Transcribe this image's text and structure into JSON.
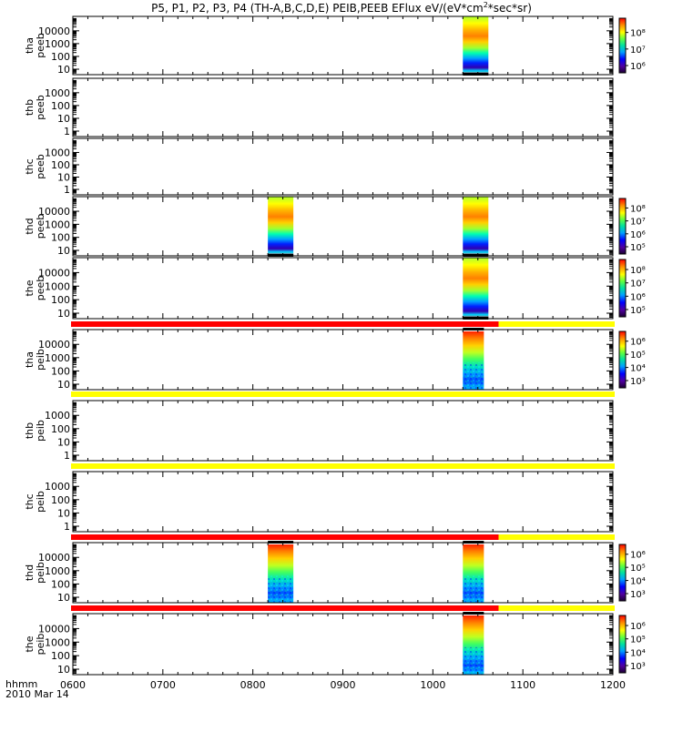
{
  "title_main": "P5, P1, P2, P3, P4 (TH-A,B,C,D,E) PEIB,PEEB EFlux eV/(eV*cm",
  "title_sup": "2",
  "title_tail": "*sec*sr)",
  "footer": {
    "line1": "hhmm",
    "line2": "2010 Mar 14"
  },
  "colors": {
    "fill_red": "#ff0000",
    "fill_yellow": "#ffff00",
    "flag_black": "#000000"
  },
  "chart_data": {
    "type": "heatmap",
    "x_axis": {
      "range": [
        "0600",
        "1200"
      ],
      "ticks": [
        "0600",
        "0700",
        "0800",
        "0900",
        "1000",
        "1100",
        "1200"
      ]
    },
    "panels": [
      {
        "id": "tha-peeb",
        "probe": "tha",
        "instrument": "peeb",
        "yticks": [
          "10",
          "100",
          "1000",
          "10000"
        ],
        "cb_ticks": [
          "10⁶",
          "10⁷",
          "10⁸"
        ],
        "blocks": [
          [
            "1020",
            "1037"
          ]
        ]
      },
      {
        "id": "thb-peeb",
        "probe": "thb",
        "instrument": "peeb",
        "yticks": [
          "1",
          "10",
          "100",
          "1000"
        ],
        "cb_ticks": [],
        "blocks": []
      },
      {
        "id": "thc-peeb",
        "probe": "thc",
        "instrument": "peeb",
        "yticks": [
          "1",
          "10",
          "100",
          "1000"
        ],
        "cb_ticks": [],
        "blocks": []
      },
      {
        "id": "thd-peeb",
        "probe": "thd",
        "instrument": "peeb",
        "yticks": [
          "10",
          "100",
          "1000",
          "10000"
        ],
        "cb_ticks": [
          "10⁵",
          "10⁶",
          "10⁷",
          "10⁸"
        ],
        "blocks": [
          [
            "0810",
            "0827"
          ],
          [
            "1020",
            "1037"
          ]
        ]
      },
      {
        "id": "the-peeb",
        "probe": "the",
        "instrument": "peeb",
        "yticks": [
          "10",
          "100",
          "1000",
          "10000"
        ],
        "cb_ticks": [
          "10⁵",
          "10⁶",
          "10⁷",
          "10⁸"
        ],
        "blocks": [
          [
            "1020",
            "1037"
          ]
        ]
      },
      {
        "id": "tha-peib",
        "probe": "tha",
        "instrument": "peib",
        "yticks": [
          "10",
          "100",
          "1000",
          "10000"
        ],
        "cb_ticks": [
          "10³",
          "10⁴",
          "10⁵",
          "10⁶"
        ],
        "blocks": [
          [
            "1020",
            "1034"
          ]
        ]
      },
      {
        "id": "thb-peib",
        "probe": "thb",
        "instrument": "peib",
        "yticks": [
          "1",
          "10",
          "100",
          "1000"
        ],
        "cb_ticks": [],
        "blocks": []
      },
      {
        "id": "thc-peib",
        "probe": "thc",
        "instrument": "peib",
        "yticks": [
          "1",
          "10",
          "100",
          "1000"
        ],
        "cb_ticks": [],
        "blocks": []
      },
      {
        "id": "thd-peib",
        "probe": "thd",
        "instrument": "peib",
        "yticks": [
          "10",
          "100",
          "1000",
          "10000"
        ],
        "cb_ticks": [
          "10³",
          "10⁴",
          "10⁵",
          "10⁶"
        ],
        "blocks": [
          [
            "0810",
            "0827"
          ],
          [
            "1020",
            "1034"
          ]
        ]
      },
      {
        "id": "the-peib",
        "probe": "the",
        "instrument": "peib",
        "yticks": [
          "10",
          "100",
          "1000",
          "10000"
        ],
        "cb_ticks": [
          "10³",
          "10⁴",
          "10⁵",
          "10⁶"
        ],
        "blocks": [
          [
            "1020",
            "1034"
          ]
        ]
      }
    ],
    "flag_bars": [
      {
        "id": "flag-1",
        "segments": [
          {
            "color": "red",
            "from": "0600",
            "to": "1045"
          },
          {
            "color": "yellow",
            "from": "1045",
            "to": "1200"
          }
        ]
      },
      {
        "id": "flag-2",
        "segments": [
          {
            "color": "yellow",
            "from": "0600",
            "to": "1200"
          }
        ]
      },
      {
        "id": "flag-3",
        "segments": [
          {
            "color": "yellow",
            "from": "0600",
            "to": "1200"
          }
        ]
      },
      {
        "id": "flag-4",
        "segments": [
          {
            "color": "red",
            "from": "0600",
            "to": "1045"
          },
          {
            "color": "yellow",
            "from": "1045",
            "to": "1200"
          }
        ]
      },
      {
        "id": "flag-5",
        "segments": [
          {
            "color": "red",
            "from": "0600",
            "to": "1045"
          },
          {
            "color": "yellow",
            "from": "1045",
            "to": "1200"
          }
        ]
      }
    ]
  }
}
